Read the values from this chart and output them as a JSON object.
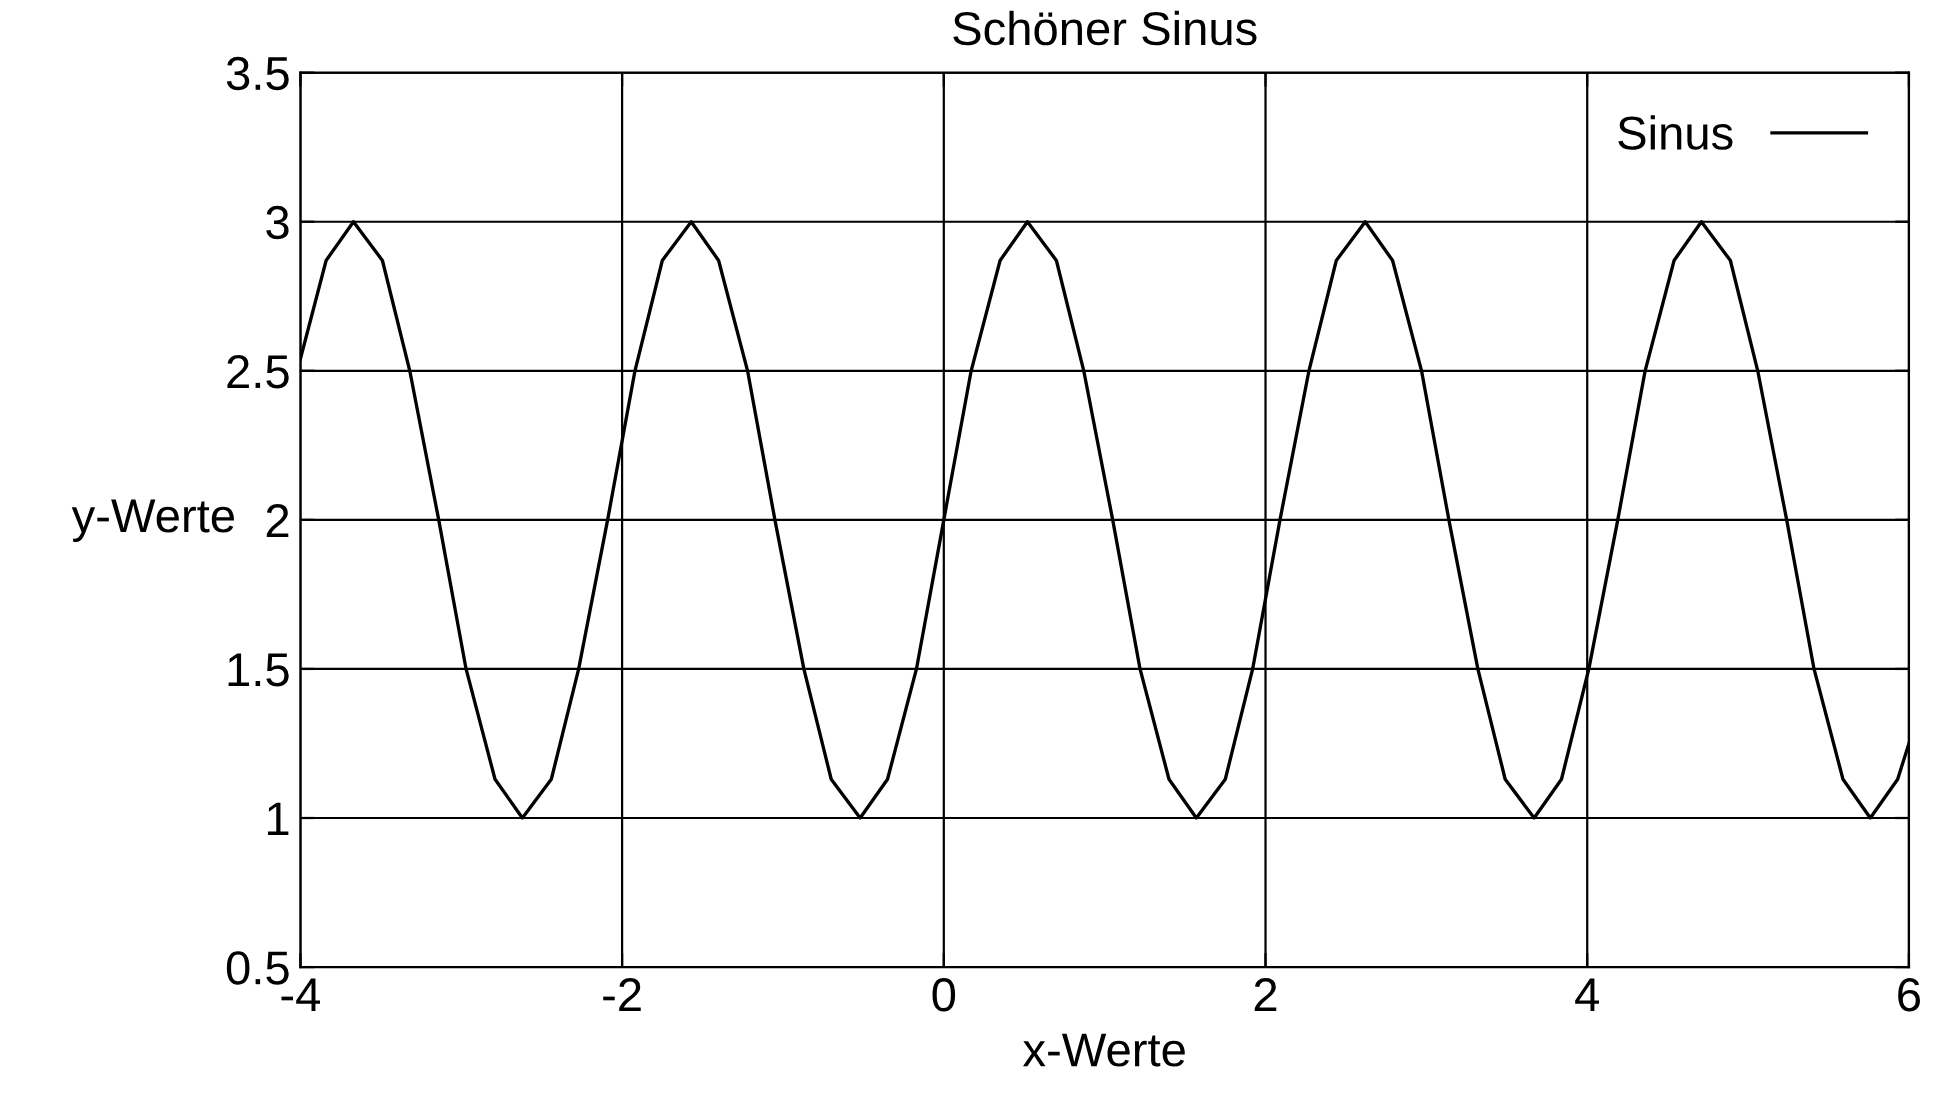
{
  "chart_data": {
    "type": "line",
    "title": "Schöner Sinus",
    "xlabel": "x-Werte",
    "ylabel": "y-Werte",
    "xlim": [
      -4,
      6
    ],
    "xticks": [
      -4,
      -2,
      0,
      2,
      4,
      6
    ],
    "ylim": [
      0.5,
      3.5
    ],
    "yticks": [
      0.5,
      1,
      1.5,
      2,
      2.5,
      3,
      3.5
    ],
    "grid": true,
    "legend": "top right",
    "marker": "none",
    "line_style": "solid",
    "series": [
      {
        "name": "Sinus",
        "color": "#000000",
        "x": [
          -4,
          -3.84,
          -3.67,
          -3.49,
          -3.32,
          -3.14,
          -2.97,
          -2.79,
          -2.62,
          -2.44,
          -2.27,
          -2.09,
          -1.92,
          -1.75,
          -1.57,
          -1.4,
          -1.22,
          -1.05,
          -0.87,
          -0.7,
          -0.52,
          -0.35,
          -0.17,
          0,
          0.17,
          0.35,
          0.52,
          0.7,
          0.87,
          1.05,
          1.22,
          1.4,
          1.57,
          1.75,
          1.92,
          2.09,
          2.27,
          2.44,
          2.62,
          2.79,
          2.97,
          3.14,
          3.32,
          3.49,
          3.67,
          3.84,
          4.01,
          4.19,
          4.36,
          4.54,
          4.71,
          4.89,
          5.06,
          5.24,
          5.41,
          5.59,
          5.76,
          5.93,
          6
        ],
        "values": [
          2.54,
          2.87,
          3,
          2.87,
          2.5,
          2,
          1.5,
          1.13,
          1,
          1.13,
          1.5,
          2,
          2.5,
          2.87,
          3,
          2.87,
          2.5,
          2,
          1.5,
          1.13,
          1,
          1.13,
          1.5,
          2,
          2.5,
          2.87,
          3,
          2.87,
          2.5,
          2,
          1.5,
          1.13,
          1,
          1.13,
          1.5,
          2,
          2.5,
          2.87,
          3,
          2.87,
          2.5,
          2,
          1.5,
          1.13,
          1,
          1.13,
          1.5,
          2,
          2.5,
          2.87,
          3,
          2.87,
          2.5,
          2,
          1.5,
          1.13,
          1,
          1.13,
          1.25
        ]
      }
    ]
  }
}
